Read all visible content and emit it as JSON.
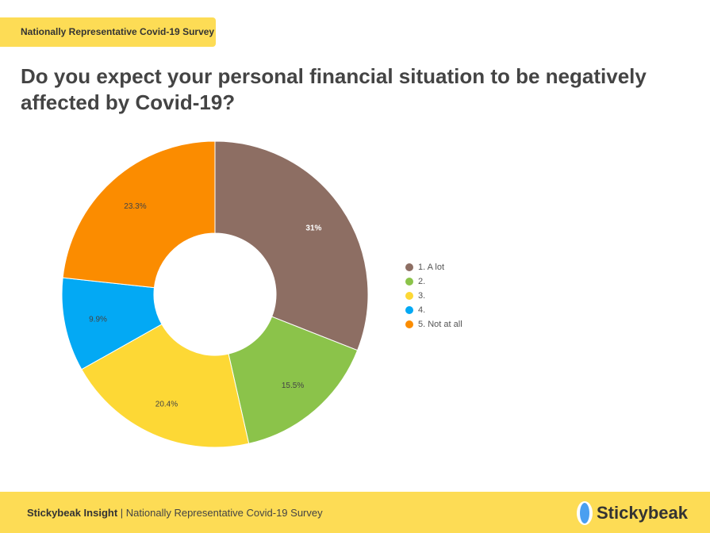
{
  "header": {
    "badge": "Nationally Representative Covid-19 Survey"
  },
  "chart_data": {
    "type": "pie",
    "title": "Do you expect your personal financial situation to be negatively affected by Covid-19?",
    "donut": true,
    "legend_position": "right",
    "slices": [
      {
        "label": "1. A lot",
        "value": 31,
        "display": "31%",
        "color": "#8d6e63"
      },
      {
        "label": "2.",
        "value": 15.5,
        "display": "15.5%",
        "color": "#8bc34a"
      },
      {
        "label": "3.",
        "value": 20.4,
        "display": "20.4%",
        "color": "#fdd835"
      },
      {
        "label": "4.",
        "value": 9.9,
        "display": "9.9%",
        "color": "#03a9f4"
      },
      {
        "label": "5. Not at all",
        "value": 23.3,
        "display": "23.3%",
        "color": "#fb8c00"
      }
    ]
  },
  "footer": {
    "brand": "Stickybeak Insight",
    "separator": " | ",
    "survey": "Nationally Representative Covid-19 Survey",
    "logo_text": "Stickybeak"
  }
}
